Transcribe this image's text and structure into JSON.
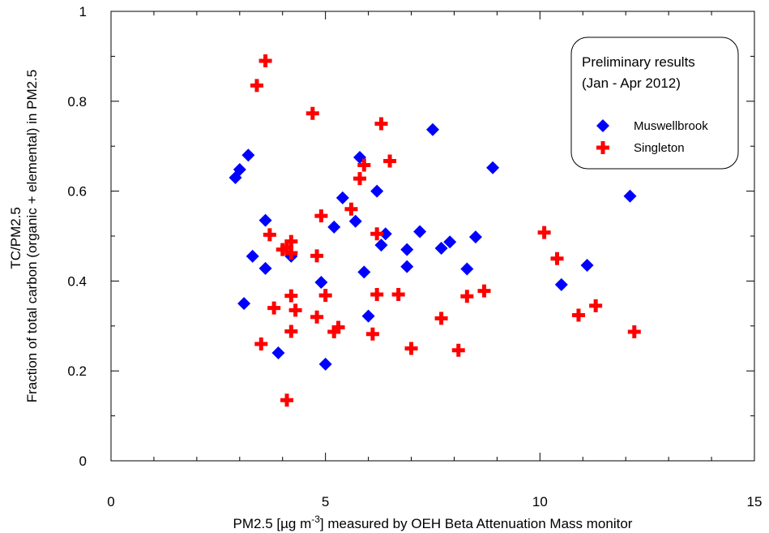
{
  "chart_data": {
    "type": "scatter",
    "xlabel_parts": [
      "PM2.5 [µg m",
      "-3",
      "] measured by OEH Beta Attenuation Mass monitor"
    ],
    "ylabel_lines": [
      "TC/PM2.5",
      "Fraction of total carbon (organic + elemental) in PM2.5"
    ],
    "xlim": [
      0,
      15
    ],
    "ylim": [
      0,
      1
    ],
    "x_ticks": [
      0,
      5,
      10,
      15
    ],
    "y_ticks": [
      0,
      0.2,
      0.4,
      0.6,
      0.8,
      1
    ],
    "x_tick_labels": [
      "0",
      "5",
      "10",
      "15"
    ],
    "y_tick_labels": [
      "0",
      "0.2",
      "0.4",
      "0.6",
      "0.8",
      "1"
    ],
    "grid": false,
    "legend": {
      "placement": "top-right",
      "title_lines": [
        "Preliminary results",
        "(Jan - Apr 2012)"
      ]
    },
    "series": [
      {
        "name": "Muswellbrook",
        "marker": "diamond",
        "color": "#0000ff",
        "points": [
          [
            2.9,
            0.63
          ],
          [
            3.0,
            0.648
          ],
          [
            3.2,
            0.68
          ],
          [
            3.1,
            0.35
          ],
          [
            3.3,
            0.455
          ],
          [
            3.6,
            0.535
          ],
          [
            3.6,
            0.428
          ],
          [
            3.9,
            0.24
          ],
          [
            4.2,
            0.455
          ],
          [
            4.9,
            0.397
          ],
          [
            5.0,
            0.215
          ],
          [
            5.2,
            0.52
          ],
          [
            5.4,
            0.585
          ],
          [
            5.7,
            0.533
          ],
          [
            5.8,
            0.675
          ],
          [
            5.9,
            0.42
          ],
          [
            6.0,
            0.322
          ],
          [
            6.2,
            0.6
          ],
          [
            6.3,
            0.48
          ],
          [
            6.4,
            0.505
          ],
          [
            6.9,
            0.47
          ],
          [
            6.9,
            0.432
          ],
          [
            7.2,
            0.51
          ],
          [
            7.5,
            0.737
          ],
          [
            7.7,
            0.473
          ],
          [
            7.9,
            0.487
          ],
          [
            8.3,
            0.427
          ],
          [
            8.5,
            0.498
          ],
          [
            8.9,
            0.652
          ],
          [
            10.5,
            0.392
          ],
          [
            11.1,
            0.435
          ],
          [
            12.1,
            0.589
          ]
        ]
      },
      {
        "name": "Singleton",
        "marker": "plus",
        "color": "#ff0000",
        "points": [
          [
            3.4,
            0.835
          ],
          [
            3.6,
            0.89
          ],
          [
            3.5,
            0.26
          ],
          [
            3.7,
            0.503
          ],
          [
            3.8,
            0.34
          ],
          [
            4.0,
            0.47
          ],
          [
            4.1,
            0.135
          ],
          [
            4.1,
            0.475
          ],
          [
            4.2,
            0.488
          ],
          [
            4.2,
            0.462
          ],
          [
            4.2,
            0.367
          ],
          [
            4.2,
            0.288
          ],
          [
            4.3,
            0.335
          ],
          [
            4.7,
            0.773
          ],
          [
            4.8,
            0.456
          ],
          [
            4.8,
            0.32
          ],
          [
            4.9,
            0.545
          ],
          [
            5.0,
            0.368
          ],
          [
            5.2,
            0.287
          ],
          [
            5.3,
            0.297
          ],
          [
            5.6,
            0.56
          ],
          [
            5.8,
            0.628
          ],
          [
            5.9,
            0.658
          ],
          [
            6.1,
            0.282
          ],
          [
            6.2,
            0.505
          ],
          [
            6.2,
            0.37
          ],
          [
            6.3,
            0.75
          ],
          [
            6.5,
            0.667
          ],
          [
            6.7,
            0.37
          ],
          [
            7.0,
            0.25
          ],
          [
            7.7,
            0.317
          ],
          [
            8.1,
            0.246
          ],
          [
            8.3,
            0.366
          ],
          [
            8.7,
            0.378
          ],
          [
            10.1,
            0.508
          ],
          [
            10.4,
            0.45
          ],
          [
            10.9,
            0.324
          ],
          [
            11.3,
            0.345
          ],
          [
            12.2,
            0.287
          ]
        ]
      }
    ]
  }
}
